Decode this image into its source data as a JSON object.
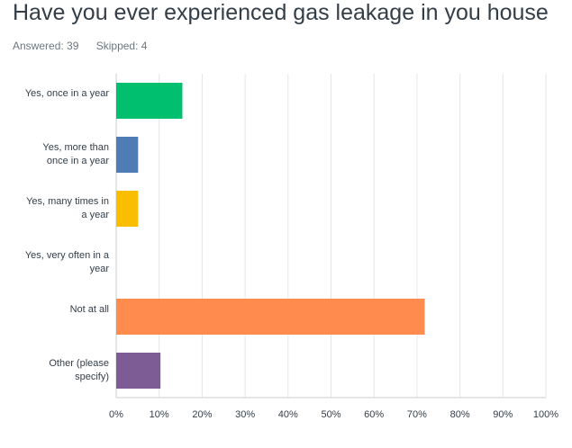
{
  "chart_data": {
    "type": "bar",
    "orientation": "horizontal",
    "title": "Have you ever experienced gas leakage in you house",
    "subtitle_items": [
      "Answered: 39",
      "Skipped: 4"
    ],
    "categories": [
      "Yes, once in a year",
      "Yes, more than once in a year",
      "Yes, many times in a year",
      "Yes, very often in a year",
      "Not at all",
      "Other (please specify)"
    ],
    "values": [
      15.4,
      5.1,
      5.1,
      0,
      71.8,
      10.3
    ],
    "colors": [
      "#00bf6f",
      "#507cb6",
      "#f9be00",
      "#6bc8cd",
      "#ff8b4f",
      "#7d5c96"
    ],
    "xlim": [
      0,
      100
    ],
    "xticks": [
      {
        "value": 0,
        "label": "0%"
      },
      {
        "value": 10,
        "label": "10%"
      },
      {
        "value": 20,
        "label": "20%"
      },
      {
        "value": 30,
        "label": "30%"
      },
      {
        "value": 40,
        "label": "40%"
      },
      {
        "value": 50,
        "label": "50%"
      },
      {
        "value": 60,
        "label": "60%"
      },
      {
        "value": 70,
        "label": "70%"
      },
      {
        "value": 80,
        "label": "80%"
      },
      {
        "value": 90,
        "label": "90%"
      },
      {
        "value": 100,
        "label": "100%"
      }
    ],
    "grid": true
  }
}
